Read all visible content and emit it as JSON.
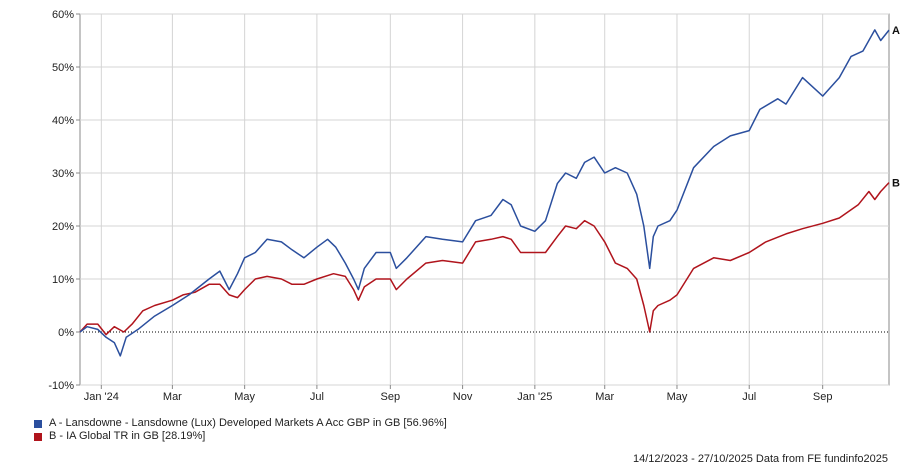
{
  "chart_data": {
    "type": "line",
    "ylim": [
      -10,
      60
    ],
    "y_ticks": [
      "60%",
      "50%",
      "40%",
      "30%",
      "20%",
      "10%",
      "0%",
      "-10%"
    ],
    "y_tick_values": [
      60,
      50,
      40,
      30,
      20,
      10,
      0,
      -10
    ],
    "x_range": [
      "2023-12-14",
      "2025-10-27"
    ],
    "x_ticks": [
      {
        "label": "Jan '24",
        "date": "2024-01-01"
      },
      {
        "label": "Mar",
        "date": "2024-03-01"
      },
      {
        "label": "May",
        "date": "2024-05-01"
      },
      {
        "label": "Jul",
        "date": "2024-07-01"
      },
      {
        "label": "Sep",
        "date": "2024-09-01"
      },
      {
        "label": "Nov",
        "date": "2024-11-01"
      },
      {
        "label": "Jan '25",
        "date": "2025-01-01"
      },
      {
        "label": "Mar",
        "date": "2025-03-01"
      },
      {
        "label": "May",
        "date": "2025-05-01"
      },
      {
        "label": "Jul",
        "date": "2025-07-01"
      },
      {
        "label": "Sep",
        "date": "2025-09-01"
      }
    ],
    "grid": true,
    "zero_line": "dotted",
    "series": [
      {
        "name": "A - Lansdowne - Lansdowne (Lux) Developed Markets A Acc GBP in GB [56.96%]",
        "end_label": "A",
        "color": "#2b4f9e",
        "points": [
          [
            "2023-12-14",
            0
          ],
          [
            "2023-12-20",
            1
          ],
          [
            "2023-12-29",
            0.5
          ],
          [
            "2024-01-05",
            -1
          ],
          [
            "2024-01-12",
            -2
          ],
          [
            "2024-01-17",
            -4.5
          ],
          [
            "2024-01-22",
            -1
          ],
          [
            "2024-02-01",
            0.5
          ],
          [
            "2024-02-15",
            3
          ],
          [
            "2024-03-01",
            5
          ],
          [
            "2024-03-15",
            7
          ],
          [
            "2024-04-01",
            10
          ],
          [
            "2024-04-10",
            11.5
          ],
          [
            "2024-04-18",
            8
          ],
          [
            "2024-04-25",
            11
          ],
          [
            "2024-05-01",
            14
          ],
          [
            "2024-05-10",
            15
          ],
          [
            "2024-05-20",
            17.5
          ],
          [
            "2024-06-01",
            17
          ],
          [
            "2024-06-10",
            15.5
          ],
          [
            "2024-06-20",
            14
          ],
          [
            "2024-07-01",
            16
          ],
          [
            "2024-07-10",
            17.5
          ],
          [
            "2024-07-17",
            16
          ],
          [
            "2024-07-25",
            13
          ],
          [
            "2024-08-01",
            10
          ],
          [
            "2024-08-05",
            8
          ],
          [
            "2024-08-10",
            12
          ],
          [
            "2024-08-20",
            15
          ],
          [
            "2024-09-01",
            15
          ],
          [
            "2024-09-06",
            12
          ],
          [
            "2024-09-15",
            14
          ],
          [
            "2024-10-01",
            18
          ],
          [
            "2024-10-15",
            17.5
          ],
          [
            "2024-11-01",
            17
          ],
          [
            "2024-11-12",
            21
          ],
          [
            "2024-11-25",
            22
          ],
          [
            "2024-12-05",
            25
          ],
          [
            "2024-12-12",
            24
          ],
          [
            "2024-12-20",
            20
          ],
          [
            "2025-01-01",
            19
          ],
          [
            "2025-01-10",
            21
          ],
          [
            "2025-01-20",
            28
          ],
          [
            "2025-01-27",
            30
          ],
          [
            "2025-02-05",
            29
          ],
          [
            "2025-02-12",
            32
          ],
          [
            "2025-02-20",
            33
          ],
          [
            "2025-03-01",
            30
          ],
          [
            "2025-03-10",
            31
          ],
          [
            "2025-03-20",
            30
          ],
          [
            "2025-03-28",
            26
          ],
          [
            "2025-04-03",
            20
          ],
          [
            "2025-04-08",
            12
          ],
          [
            "2025-04-11",
            18
          ],
          [
            "2025-04-15",
            20
          ],
          [
            "2025-04-25",
            21
          ],
          [
            "2025-05-01",
            23
          ],
          [
            "2025-05-15",
            31
          ],
          [
            "2025-06-01",
            35
          ],
          [
            "2025-06-15",
            37
          ],
          [
            "2025-07-01",
            38
          ],
          [
            "2025-07-10",
            42
          ],
          [
            "2025-07-25",
            44
          ],
          [
            "2025-08-01",
            43
          ],
          [
            "2025-08-15",
            48
          ],
          [
            "2025-09-01",
            44.5
          ],
          [
            "2025-09-15",
            48
          ],
          [
            "2025-09-25",
            52
          ],
          [
            "2025-10-05",
            53
          ],
          [
            "2025-10-15",
            57
          ],
          [
            "2025-10-20",
            55
          ],
          [
            "2025-10-27",
            56.96
          ]
        ]
      },
      {
        "name": "B - IA Global TR in GB [28.19%]",
        "end_label": "B",
        "color": "#b0141c",
        "points": [
          [
            "2023-12-14",
            0
          ],
          [
            "2023-12-20",
            1.5
          ],
          [
            "2023-12-29",
            1.5
          ],
          [
            "2024-01-05",
            -0.5
          ],
          [
            "2024-01-12",
            1
          ],
          [
            "2024-01-20",
            0
          ],
          [
            "2024-01-27",
            1.5
          ],
          [
            "2024-02-05",
            4
          ],
          [
            "2024-02-15",
            5
          ],
          [
            "2024-03-01",
            6
          ],
          [
            "2024-03-10",
            7
          ],
          [
            "2024-03-20",
            7.5
          ],
          [
            "2024-04-01",
            9
          ],
          [
            "2024-04-10",
            9
          ],
          [
            "2024-04-18",
            7
          ],
          [
            "2024-04-25",
            6.5
          ],
          [
            "2024-05-01",
            8
          ],
          [
            "2024-05-10",
            10
          ],
          [
            "2024-05-20",
            10.5
          ],
          [
            "2024-06-01",
            10
          ],
          [
            "2024-06-10",
            9
          ],
          [
            "2024-06-20",
            9
          ],
          [
            "2024-07-01",
            10
          ],
          [
            "2024-07-15",
            11
          ],
          [
            "2024-07-25",
            10.5
          ],
          [
            "2024-08-01",
            8
          ],
          [
            "2024-08-05",
            6
          ],
          [
            "2024-08-10",
            8.5
          ],
          [
            "2024-08-20",
            10
          ],
          [
            "2024-09-01",
            10
          ],
          [
            "2024-09-06",
            8
          ],
          [
            "2024-09-15",
            10
          ],
          [
            "2024-10-01",
            13
          ],
          [
            "2024-10-15",
            13.5
          ],
          [
            "2024-11-01",
            13
          ],
          [
            "2024-11-12",
            17
          ],
          [
            "2024-11-25",
            17.5
          ],
          [
            "2024-12-05",
            18
          ],
          [
            "2024-12-12",
            17.5
          ],
          [
            "2024-12-20",
            15
          ],
          [
            "2025-01-01",
            15
          ],
          [
            "2025-01-10",
            15
          ],
          [
            "2025-01-20",
            18
          ],
          [
            "2025-01-27",
            20
          ],
          [
            "2025-02-05",
            19.5
          ],
          [
            "2025-02-12",
            21
          ],
          [
            "2025-02-20",
            20
          ],
          [
            "2025-03-01",
            17
          ],
          [
            "2025-03-10",
            13
          ],
          [
            "2025-03-20",
            12
          ],
          [
            "2025-03-28",
            10
          ],
          [
            "2025-04-03",
            5
          ],
          [
            "2025-04-08",
            0
          ],
          [
            "2025-04-11",
            4
          ],
          [
            "2025-04-15",
            5
          ],
          [
            "2025-04-25",
            6
          ],
          [
            "2025-05-01",
            7
          ],
          [
            "2025-05-15",
            12
          ],
          [
            "2025-06-01",
            14
          ],
          [
            "2025-06-15",
            13.5
          ],
          [
            "2025-07-01",
            15
          ],
          [
            "2025-07-15",
            17
          ],
          [
            "2025-08-01",
            18.5
          ],
          [
            "2025-08-15",
            19.5
          ],
          [
            "2025-09-01",
            20.5
          ],
          [
            "2025-09-15",
            21.5
          ],
          [
            "2025-10-01",
            24
          ],
          [
            "2025-10-10",
            26.5
          ],
          [
            "2025-10-15",
            25
          ],
          [
            "2025-10-20",
            26.5
          ],
          [
            "2025-10-27",
            28.19
          ]
        ]
      }
    ]
  },
  "legend": [
    {
      "label": "A - Lansdowne - Lansdowne (Lux) Developed Markets A Acc GBP in GB [56.96%]",
      "color": "#2b4f9e"
    },
    {
      "label": "B - IA Global TR in GB [28.19%]",
      "color": "#b0141c"
    }
  ],
  "footer": "14/12/2023 - 27/10/2025 Data from FE fundinfo2025"
}
